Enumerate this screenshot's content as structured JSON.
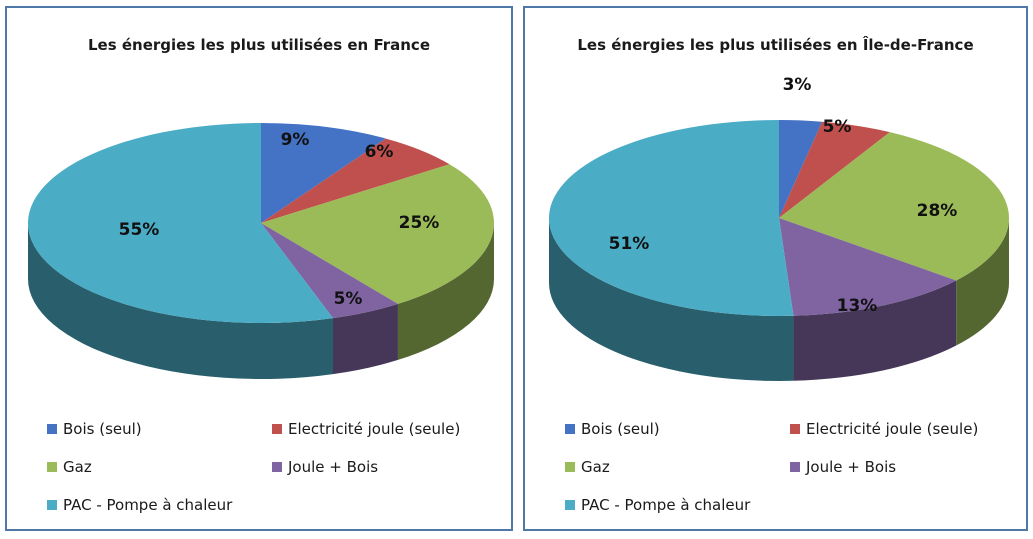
{
  "chart_data": [
    {
      "type": "pie",
      "title": "Les énergies les plus utilisées en France",
      "categories": [
        "Bois (seul)",
        "Electricité joule (seule)",
        "Gaz",
        "Joule + Bois",
        "PAC - Pompe à chaleur"
      ],
      "values": [
        9,
        6,
        25,
        5,
        55
      ],
      "labels": [
        "9%",
        "6%",
        "25%",
        "5%",
        "55%"
      ],
      "legend": "bottom",
      "three_d": true
    },
    {
      "type": "pie",
      "title": "Les énergies les plus utilisées en Île-de-France",
      "categories": [
        "Bois (seul)",
        "Electricité joule (seule)",
        "Gaz",
        "Joule + Bois",
        "PAC - Pompe à chaleur"
      ],
      "values": [
        3,
        5,
        28,
        13,
        51
      ],
      "labels": [
        "3%",
        "5%",
        "28%",
        "13%",
        "51%"
      ],
      "legend": "bottom",
      "three_d": true
    }
  ],
  "colors": [
    "#4472c4",
    "#c0504d",
    "#9bbb59",
    "#8064a2",
    "#4bacc6"
  ]
}
